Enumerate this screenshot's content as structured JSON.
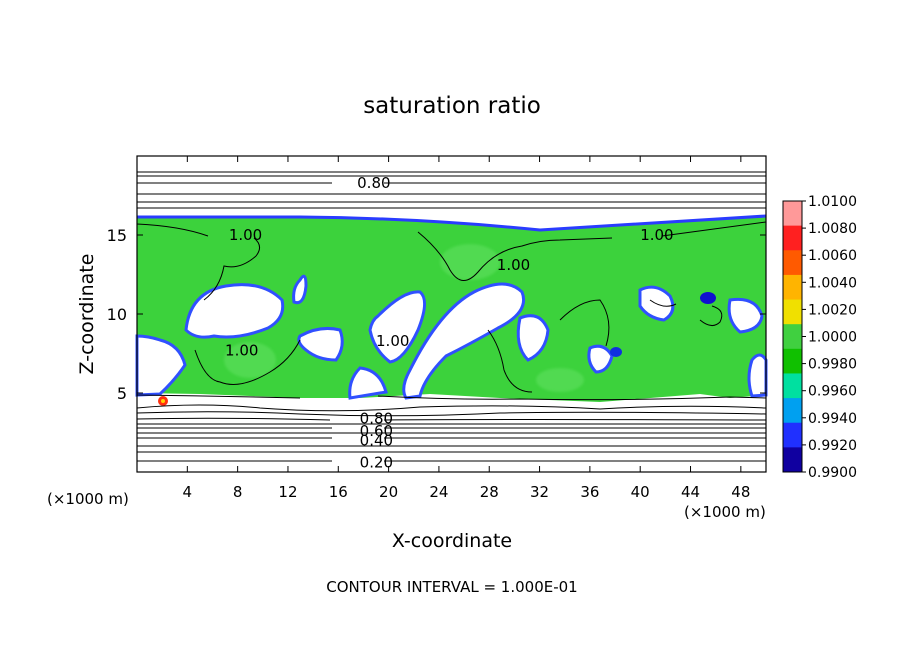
{
  "chart_data": {
    "type": "heatmap",
    "title": "saturation ratio",
    "xlabel": "X-coordinate",
    "ylabel": "Z-coordinate",
    "x_unit_left": "(×1000 m)",
    "x_unit_right": "(×1000 m)",
    "footer": "CONTOUR INTERVAL = 1.000E-01",
    "xlim": [
      0,
      50
    ],
    "ylim": [
      0,
      20
    ],
    "x_ticks": [
      4,
      8,
      12,
      16,
      20,
      24,
      28,
      32,
      36,
      40,
      44,
      48
    ],
    "y_ticks": [
      5,
      10,
      15
    ],
    "colorbar": {
      "labels": [
        "1.0100",
        "1.0080",
        "1.0060",
        "1.0040",
        "1.0020",
        "1.0000",
        "0.9980",
        "0.9960",
        "0.9940",
        "0.9920",
        "0.9900"
      ],
      "colors": [
        "#ff9999",
        "#ff2020",
        "#ff5a00",
        "#ffb400",
        "#f0e000",
        "#40d040",
        "#10c000",
        "#00e0a0",
        "#00a0f0",
        "#2030ff",
        "#1000a0"
      ]
    },
    "contour_labels": [
      {
        "text": "0.80",
        "x": 17.5,
        "z": 18.3
      },
      {
        "text": "1.00",
        "x": 7.3,
        "z": 15.0
      },
      {
        "text": "1.00",
        "x": 40.0,
        "z": 15.0
      },
      {
        "text": "1.00",
        "x": 28.6,
        "z": 13.1
      },
      {
        "text": "1.00",
        "x": 7.0,
        "z": 7.7
      },
      {
        "text": "1.00",
        "x": 19.0,
        "z": 8.3
      },
      {
        "text": "0.80",
        "x": 17.7,
        "z": 3.4
      },
      {
        "text": "0.60",
        "x": 17.7,
        "z": 2.6
      },
      {
        "text": "0.40",
        "x": 17.7,
        "z": 2.0
      },
      {
        "text": "0.20",
        "x": 17.7,
        "z": 0.6
      }
    ]
  }
}
